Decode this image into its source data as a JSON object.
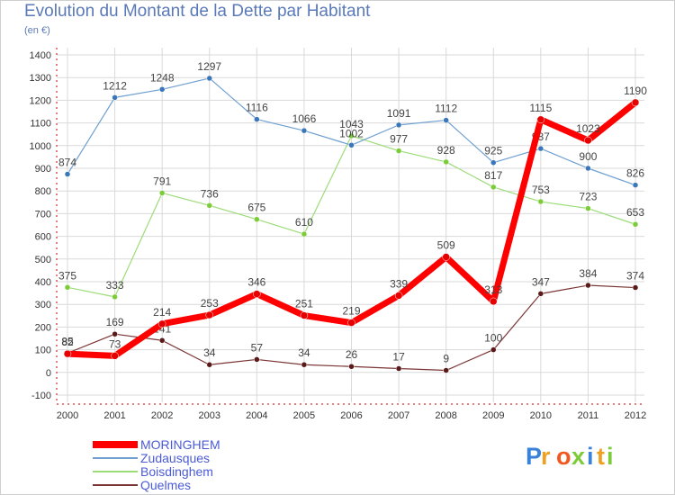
{
  "title": "Evolution du Montant de la Dette par Habitant",
  "subtitle": "(en €)",
  "logo": "Proxiti",
  "colors": {
    "title": "#5a79b8",
    "grid": "#d9d9d9",
    "background": "#ffffff"
  },
  "chart_data": {
    "type": "line",
    "title": "Evolution du Montant de la Dette par Habitant",
    "ylabel": "(en €)",
    "xlabel": "",
    "x": [
      "2000",
      "2001",
      "2002",
      "2003",
      "2004",
      "2005",
      "2006",
      "2007",
      "2008",
      "2009",
      "2010",
      "2011",
      "2012"
    ],
    "ylim": [
      -100,
      1400
    ],
    "yticks": [
      -100,
      0,
      100,
      200,
      300,
      400,
      500,
      600,
      700,
      800,
      900,
      1000,
      1100,
      1200,
      1300,
      1400
    ],
    "grid": true,
    "legend_position": "bottom-left",
    "series": [
      {
        "name": "MORINGHEM",
        "color": "#ff0000",
        "marker": "#e60000",
        "width": 7,
        "values": [
          82,
          73,
          214,
          253,
          346,
          251,
          219,
          339,
          509,
          313,
          1115,
          1023,
          1190
        ]
      },
      {
        "name": "Zudausques",
        "color": "#6e9fd0",
        "marker": "#3a77b8",
        "width": 1.2,
        "values": [
          874,
          1212,
          1248,
          1297,
          1116,
          1066,
          1002,
          1091,
          1112,
          925,
          987,
          900,
          826
        ]
      },
      {
        "name": "Boisdinghem",
        "color": "#9cdc78",
        "marker": "#7ccc3a",
        "width": 1.2,
        "values": [
          375,
          333,
          791,
          736,
          675,
          610,
          1043,
          977,
          928,
          817,
          753,
          723,
          653
        ]
      },
      {
        "name": "Quelmes",
        "color": "#7b3535",
        "marker": "#5a1a1a",
        "width": 1.2,
        "values": [
          85,
          169,
          141,
          34,
          57,
          34,
          26,
          17,
          9,
          100,
          347,
          384,
          374
        ]
      }
    ]
  }
}
